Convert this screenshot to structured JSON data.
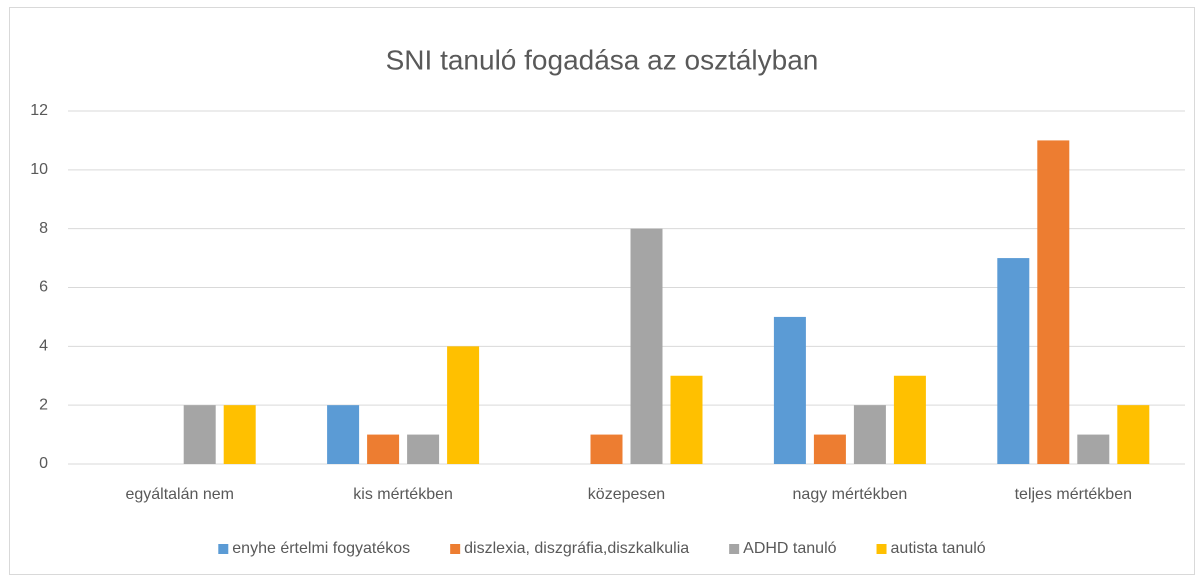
{
  "chart_data": {
    "type": "bar",
    "title": "SNI tanuló fogadása az osztályban",
    "categories": [
      "egyáltalán nem",
      "kis mértékben",
      "közepesen",
      "nagy mértékben",
      "teljes mértékben"
    ],
    "series": [
      {
        "name": "enyhe értelmi fogyatékos",
        "color": "#5b9bd5",
        "values": [
          0,
          2,
          0,
          5,
          7
        ]
      },
      {
        "name": "diszlexia, diszgráfia,diszkalkulia",
        "color": "#ed7d31",
        "values": [
          0,
          1,
          1,
          1,
          11
        ]
      },
      {
        "name": "ADHD tanuló",
        "color": "#a5a5a5",
        "values": [
          2,
          1,
          8,
          2,
          1
        ]
      },
      {
        "name": "autista tanuló",
        "color": "#ffc000",
        "values": [
          2,
          4,
          3,
          3,
          2
        ]
      }
    ],
    "ylim": [
      0,
      12
    ],
    "yticks": [
      0,
      2,
      4,
      6,
      8,
      10,
      12
    ],
    "grid": true,
    "legend": "bottom"
  }
}
